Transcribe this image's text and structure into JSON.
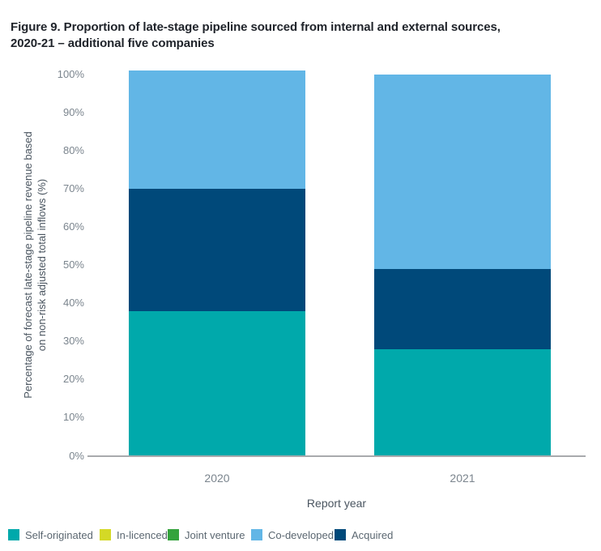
{
  "figure": {
    "title_line1": "Figure 9. Proportion of late-stage pipeline sourced from internal and external sources,",
    "title_line2": "2020-21 – additional five companies"
  },
  "chart_data": {
    "type": "bar",
    "stacked": true,
    "title": "Figure 9. Proportion of late-stage pipeline sourced from internal and external sources, 2020-21 – additional five companies",
    "xlabel": "Report year",
    "ylabel": "Percentage of forecast late-stage pipeline revenue based on non-risk adjusted total inflows (%)",
    "ylabel_line1": "Percentage of forecast late-stage pipeline revenue based",
    "ylabel_line2": "on non-risk adjusted total inflows (%)",
    "categories": [
      "2020",
      "2021"
    ],
    "ylim": [
      0,
      100
    ],
    "y_tick_labels": [
      "0%",
      "10%",
      "20%",
      "30%",
      "40%",
      "50%",
      "60%",
      "70%",
      "80%",
      "90%",
      "100%"
    ],
    "y_tick_values": [
      0,
      10,
      20,
      30,
      40,
      50,
      60,
      70,
      80,
      90,
      100
    ],
    "grid": false,
    "legend_position": "bottom",
    "series": [
      {
        "name": "Self-originated",
        "color": "#00a9ab",
        "values": [
          38,
          28
        ]
      },
      {
        "name": "In-licenced",
        "color": "#d4d926",
        "values": [
          0,
          0
        ]
      },
      {
        "name": "Joint venture",
        "color": "#34a33c",
        "values": [
          0,
          0
        ]
      },
      {
        "name": "Co-developed",
        "color": "#62b6e6",
        "values": [
          31,
          51
        ]
      },
      {
        "name": "Acquired",
        "color": "#00497a",
        "values": [
          32,
          21
        ]
      }
    ],
    "stack_order_bottom_to_top": [
      "Self-originated",
      "In-licenced",
      "Joint venture",
      "Acquired",
      "Co-developed"
    ],
    "axis_line_color": "#a8aaad"
  }
}
